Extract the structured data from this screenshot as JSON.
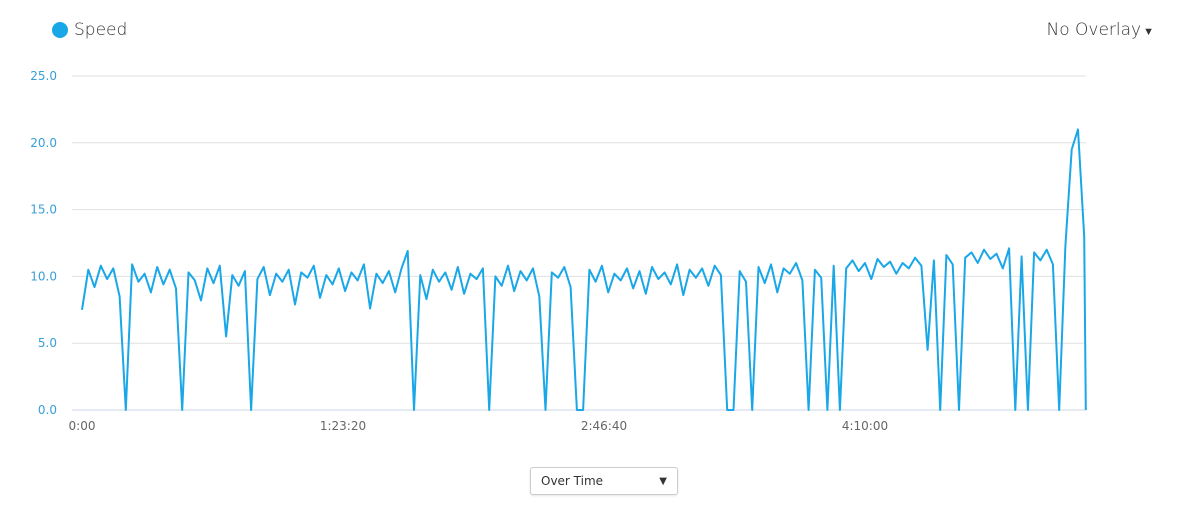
{
  "legend": {
    "label": "Speed",
    "color": "#1aa7e8"
  },
  "overlay": {
    "label": "No Overlay",
    "icon": "caret-down-icon"
  },
  "mode_select": {
    "value": "Over Time"
  },
  "chart_data": {
    "type": "line",
    "series": [
      {
        "name": "Speed",
        "color": "#1aa7e8"
      }
    ],
    "ylim": [
      0,
      25
    ],
    "yticks": [
      "0.0",
      "5.0",
      "10.0",
      "15.0",
      "20.0",
      "25.0"
    ],
    "xticks": [
      "0:00",
      "1:23:20",
      "2:46:40",
      "4:10:00"
    ],
    "grid": "horizontal",
    "x": [
      "0:00:00",
      "0:02:00",
      "0:04:00",
      "0:06:00",
      "0:08:00",
      "0:10:00",
      "0:12:00",
      "0:14:00",
      "0:16:00",
      "0:18:00",
      "0:20:00",
      "0:22:00",
      "0:24:00",
      "0:26:00",
      "0:28:00",
      "0:30:00",
      "0:32:00",
      "0:34:00",
      "0:36:00",
      "0:38:00",
      "0:40:00",
      "0:42:00",
      "0:44:00",
      "0:46:00",
      "0:48:00",
      "0:50:00",
      "0:52:00",
      "0:54:00",
      "0:56:00",
      "0:58:00",
      "1:00:00",
      "1:02:00",
      "1:04:00",
      "1:06:00",
      "1:08:00",
      "1:10:00",
      "1:12:00",
      "1:14:00",
      "1:16:00",
      "1:18:00",
      "1:20:00",
      "1:22:00",
      "1:24:00",
      "1:26:00",
      "1:28:00",
      "1:30:00",
      "1:32:00",
      "1:34:00",
      "1:36:00",
      "1:38:00",
      "1:40:00",
      "1:42:00",
      "1:44:00",
      "1:46:00",
      "1:48:00",
      "1:50:00",
      "1:52:00",
      "1:54:00",
      "1:56:00",
      "1:58:00",
      "2:00:00",
      "2:02:00",
      "2:04:00",
      "2:06:00",
      "2:08:00",
      "2:10:00",
      "2:12:00",
      "2:14:00",
      "2:16:00",
      "2:18:00",
      "2:20:00",
      "2:22:00",
      "2:24:00",
      "2:26:00",
      "2:28:00",
      "2:30:00",
      "2:32:00",
      "2:34:00",
      "2:36:00",
      "2:38:00",
      "2:40:00",
      "2:42:00",
      "2:44:00",
      "2:46:00",
      "2:48:00",
      "2:50:00",
      "2:52:00",
      "2:54:00",
      "2:56:00",
      "2:58:00",
      "3:00:00",
      "3:02:00",
      "3:04:00",
      "3:06:00",
      "3:08:00",
      "3:10:00",
      "3:12:00",
      "3:14:00",
      "3:16:00",
      "3:18:00",
      "3:20:00",
      "3:22:00",
      "3:24:00",
      "3:26:00",
      "3:28:00",
      "3:30:00",
      "3:32:00",
      "3:34:00",
      "3:36:00",
      "3:38:00",
      "3:40:00",
      "3:42:00",
      "3:44:00",
      "3:46:00",
      "3:48:00",
      "3:50:00",
      "3:52:00",
      "3:54:00",
      "3:56:00",
      "3:58:00",
      "4:00:00",
      "4:02:00",
      "4:04:00",
      "4:06:00",
      "4:08:00",
      "4:10:00",
      "4:12:00",
      "4:14:00",
      "4:16:00",
      "4:18:00",
      "4:20:00",
      "4:22:00",
      "4:24:00",
      "4:26:00",
      "4:28:00",
      "4:30:00",
      "4:32:00",
      "4:34:00",
      "4:36:00",
      "4:38:00",
      "4:40:00",
      "4:42:00",
      "4:44:00",
      "4:46:00",
      "4:48:00",
      "4:50:00",
      "4:52:00",
      "4:54:00",
      "4:56:00",
      "4:58:00",
      "5:00:00",
      "5:02:00",
      "5:04:00",
      "5:06:00",
      "5:08:00",
      "5:10:00",
      "5:12:00",
      "5:14:00",
      "5:16:00",
      "5:18:00",
      "5:20:00",
      "5:20:30"
    ],
    "values": [
      7.5,
      10.5,
      9.2,
      10.8,
      9.8,
      10.6,
      8.5,
      0,
      10.9,
      9.6,
      10.2,
      8.8,
      10.7,
      9.4,
      10.5,
      9.1,
      0,
      10.3,
      9.7,
      8.2,
      10.6,
      9.5,
      10.8,
      5.5,
      10.1,
      9.3,
      10.4,
      0,
      9.8,
      10.7,
      8.6,
      10.2,
      9.6,
      10.5,
      7.9,
      10.3,
      9.9,
      10.8,
      8.4,
      10.1,
      9.4,
      10.6,
      8.9,
      10.3,
      9.7,
      10.9,
      7.6,
      10.2,
      9.5,
      10.4,
      8.8,
      10.6,
      11.9,
      0,
      10.1,
      8.3,
      10.5,
      9.6,
      10.3,
      9.0,
      10.7,
      8.7,
      10.2,
      9.8,
      10.6,
      0,
      10.0,
      9.3,
      10.8,
      8.9,
      10.4,
      9.7,
      10.6,
      8.5,
      0,
      10.3,
      9.9,
      10.7,
      9.2,
      0,
      0,
      10.5,
      9.6,
      10.8,
      8.8,
      10.2,
      9.7,
      10.6,
      9.1,
      10.4,
      8.7,
      10.7,
      9.8,
      10.3,
      9.4,
      10.9,
      8.6,
      10.5,
      9.9,
      10.6,
      9.3,
      10.8,
      10.1,
      0,
      0,
      10.4,
      9.6,
      0,
      10.7,
      9.5,
      10.9,
      8.8,
      10.6,
      10.2,
      11.0,
      9.7,
      0,
      10.5,
      9.9,
      0,
      10.8,
      0,
      10.6,
      11.2,
      10.4,
      11.0,
      9.8,
      11.3,
      10.7,
      11.1,
      10.2,
      11.0,
      10.6,
      11.4,
      10.8,
      4.5,
      11.2,
      0,
      11.6,
      10.9,
      0,
      11.4,
      11.8,
      11.0,
      12.0,
      11.3,
      11.7,
      10.6,
      12.1,
      0,
      11.5,
      0,
      11.8,
      11.2,
      12.0,
      10.9,
      0,
      12.3,
      19.5,
      21.0,
      13.0,
      0
    ]
  }
}
